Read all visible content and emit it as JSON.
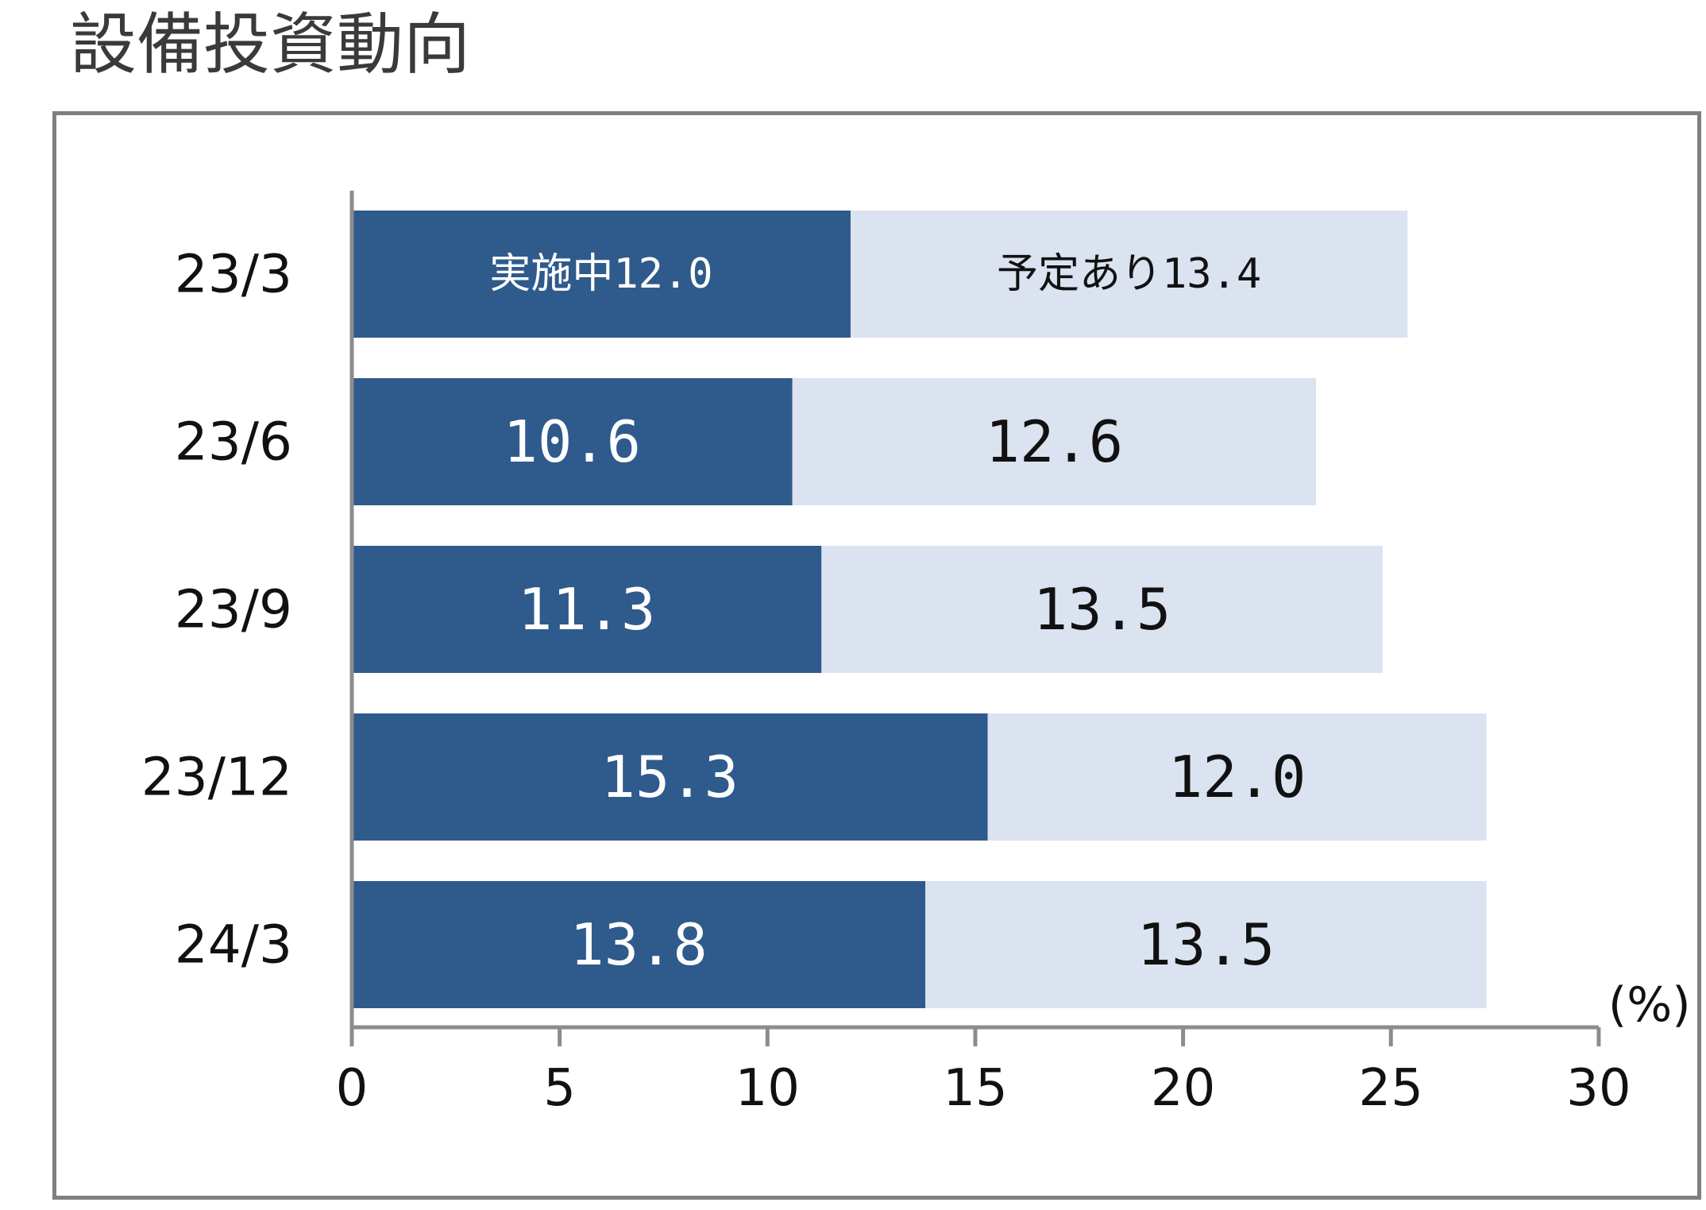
{
  "title": "設備投資動向",
  "chart_data": {
    "type": "bar",
    "orientation": "horizontal",
    "stacked": true,
    "title": "設備投資動向",
    "categories": [
      "23/3",
      "23/6",
      "23/9",
      "23/12",
      "24/3"
    ],
    "series": [
      {
        "name": "実施中",
        "color": "#2f5a8c",
        "values": [
          12.0,
          10.6,
          11.3,
          15.3,
          13.8
        ]
      },
      {
        "name": "予定あり",
        "color": "#dbe3f1",
        "values": [
          13.4,
          12.6,
          13.5,
          12.0,
          13.5
        ]
      }
    ],
    "data_labels": [
      [
        "実施中12.0",
        "10.6",
        "11.3",
        "15.3",
        "13.8"
      ],
      [
        "予定あり13.4",
        "12.6",
        "13.5",
        "12.0",
        "13.5"
      ]
    ],
    "x_ticks": [
      "0",
      "5",
      "10",
      "15",
      "20",
      "25",
      "30"
    ],
    "xlim": [
      0,
      30
    ],
    "xlabel": "(%)",
    "ylabel": "",
    "grid": false,
    "legend": "none"
  }
}
